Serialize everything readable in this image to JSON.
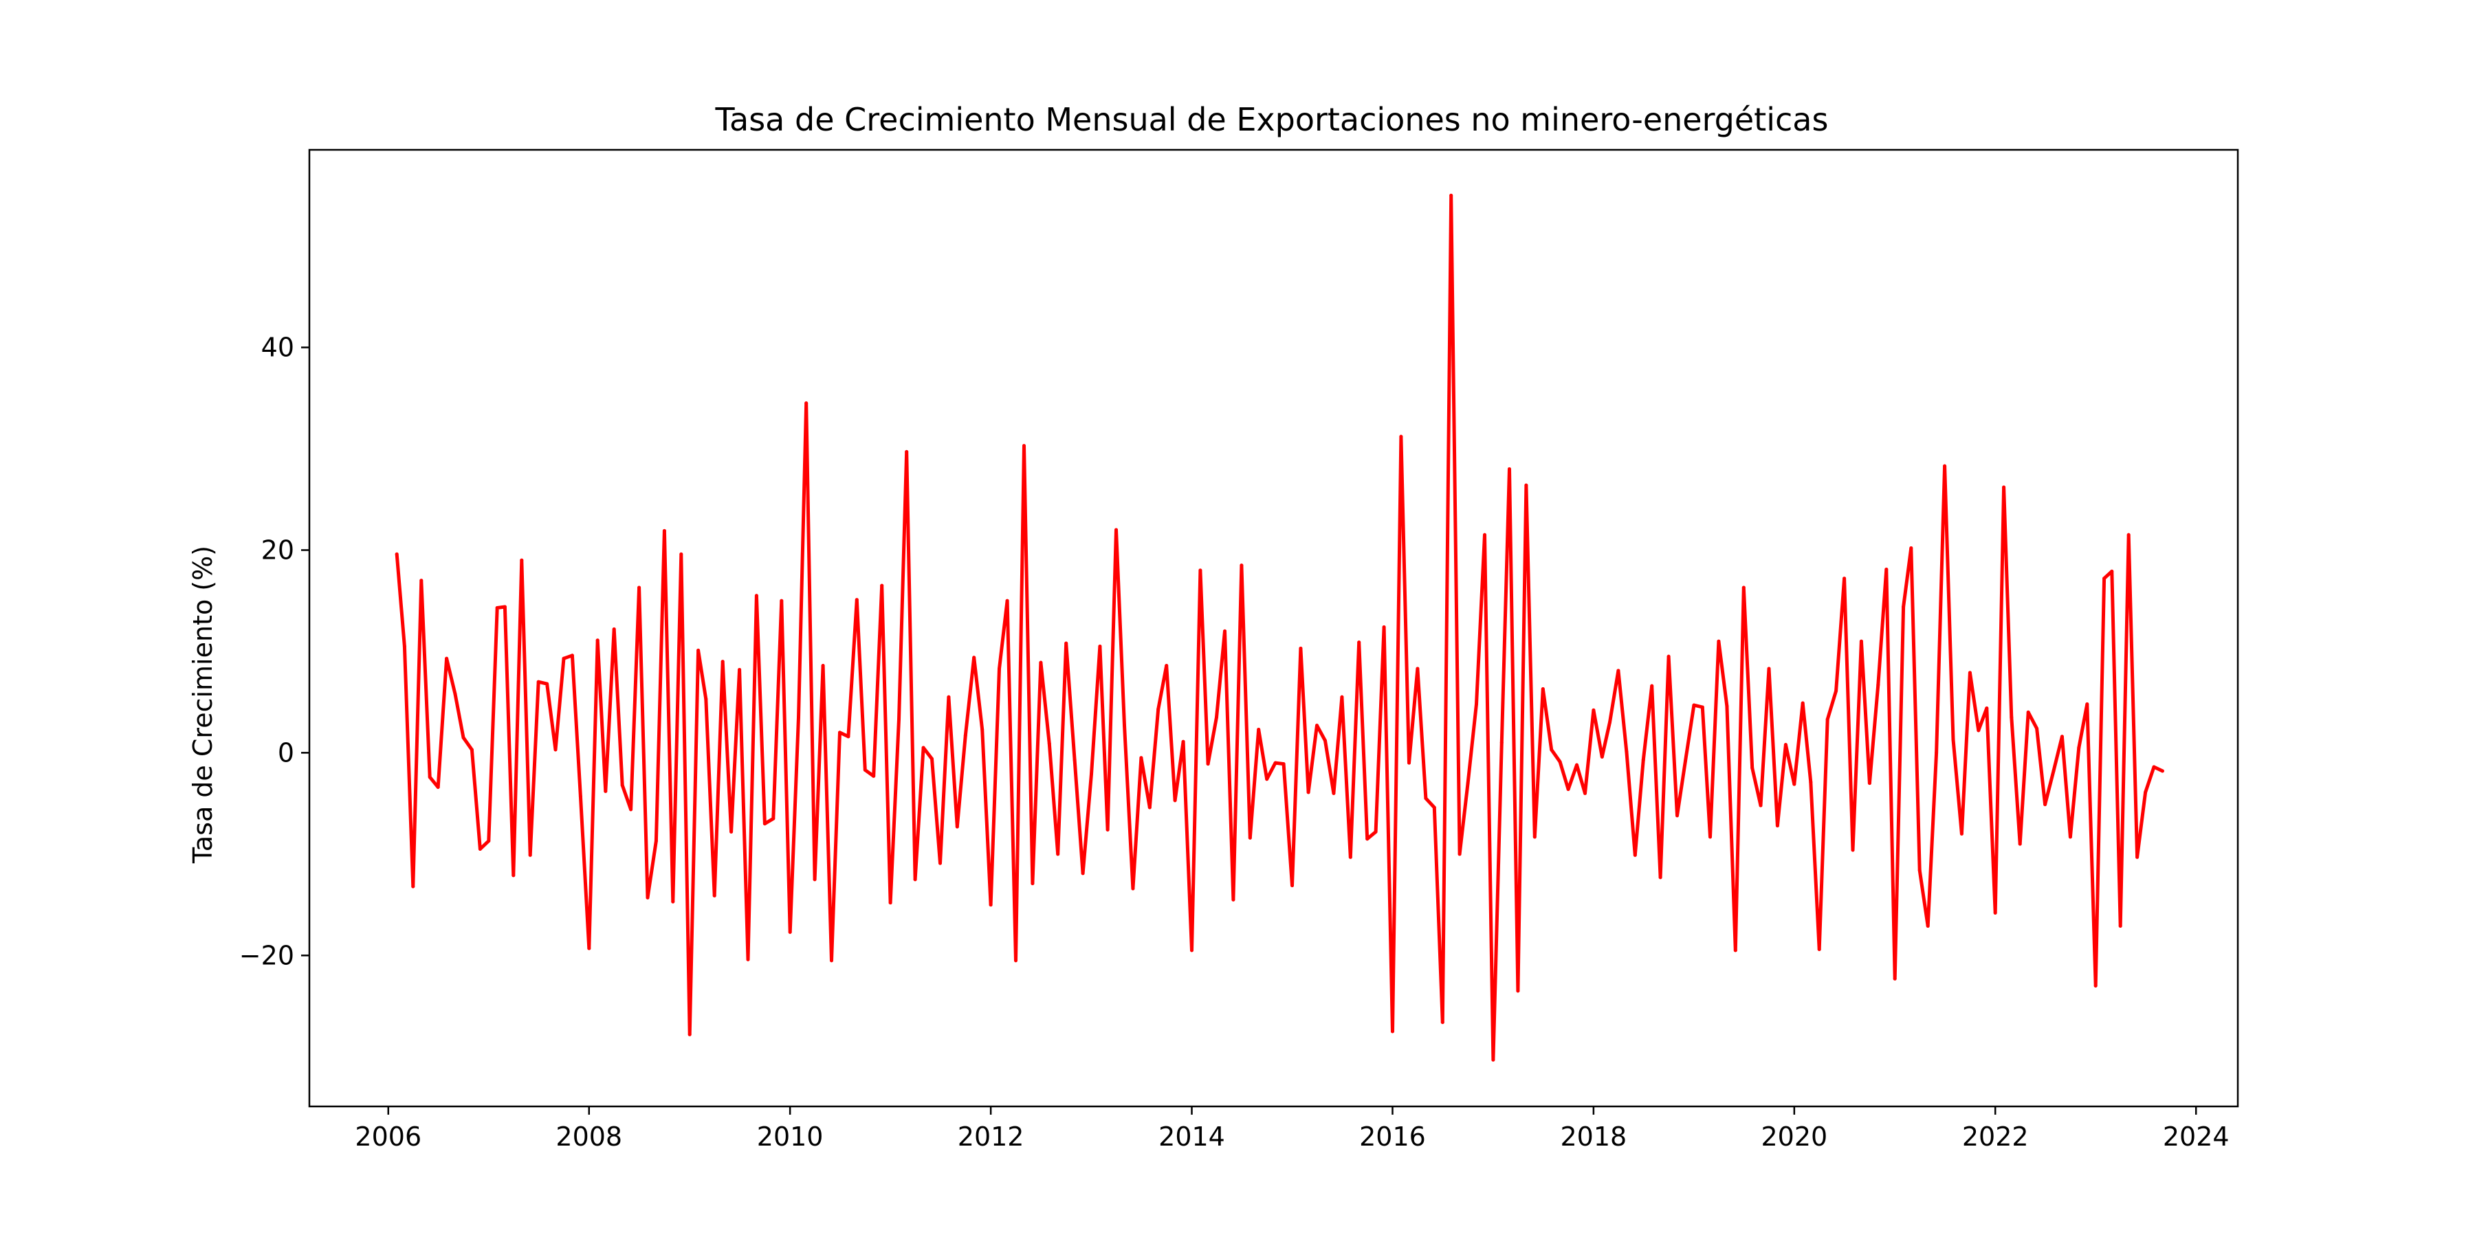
{
  "chart_data": {
    "type": "line",
    "title": "Tasa de Crecimiento Mensual de Exportaciones no minero-energéticas",
    "xlabel": "",
    "ylabel": "Tasa de Crecimiento (%)",
    "grid": false,
    "legend": "none",
    "x_axis": {
      "type": "date",
      "range": [
        "2005-03-20",
        "2024-06-01"
      ],
      "ticks": [
        "2006",
        "2008",
        "2010",
        "2012",
        "2014",
        "2016",
        "2018",
        "2020",
        "2022",
        "2024"
      ]
    },
    "y_axis": {
      "range": [
        -34.9,
        59.5
      ],
      "ticks": [
        "−20",
        "0",
        "20",
        "40"
      ],
      "tick_values": [
        -20,
        0,
        20,
        40
      ]
    },
    "series": [
      {
        "color": "#ff0000",
        "x": [
          "2006-02",
          "2006-03",
          "2006-04",
          "2006-05",
          "2006-06",
          "2006-07",
          "2006-08",
          "2006-09",
          "2006-10",
          "2006-11",
          "2006-12",
          "2007-01",
          "2007-02",
          "2007-03",
          "2007-04",
          "2007-05",
          "2007-06",
          "2007-07",
          "2007-08",
          "2007-09",
          "2007-10",
          "2007-11",
          "2007-12",
          "2008-01",
          "2008-02",
          "2008-03",
          "2008-04",
          "2008-05",
          "2008-06",
          "2008-07",
          "2008-08",
          "2008-09",
          "2008-10",
          "2008-11",
          "2008-12",
          "2009-01",
          "2009-02",
          "2009-03",
          "2009-04",
          "2009-05",
          "2009-06",
          "2009-07",
          "2009-08",
          "2009-09",
          "2009-10",
          "2009-11",
          "2009-12",
          "2010-01",
          "2010-02",
          "2010-03",
          "2010-04",
          "2010-05",
          "2010-06",
          "2010-07",
          "2010-08",
          "2010-09",
          "2010-10",
          "2010-11",
          "2010-12",
          "2011-01",
          "2011-02",
          "2011-03",
          "2011-04",
          "2011-05",
          "2011-06",
          "2011-07",
          "2011-08",
          "2011-09",
          "2011-10",
          "2011-11",
          "2011-12",
          "2012-01",
          "2012-02",
          "2012-03",
          "2012-04",
          "2012-05",
          "2012-06",
          "2012-07",
          "2012-08",
          "2012-09",
          "2012-10",
          "2012-11",
          "2012-12",
          "2013-01",
          "2013-02",
          "2013-03",
          "2013-04",
          "2013-05",
          "2013-06",
          "2013-07",
          "2013-08",
          "2013-09",
          "2013-10",
          "2013-11",
          "2013-12",
          "2014-01",
          "2014-02",
          "2014-03",
          "2014-04",
          "2014-05",
          "2014-06",
          "2014-07",
          "2014-08",
          "2014-09",
          "2014-10",
          "2014-11",
          "2014-12",
          "2015-01",
          "2015-02",
          "2015-03",
          "2015-04",
          "2015-05",
          "2015-06",
          "2015-07",
          "2015-08",
          "2015-09",
          "2015-10",
          "2015-11",
          "2015-12",
          "2016-01",
          "2016-02",
          "2016-03",
          "2016-04",
          "2016-05",
          "2016-06",
          "2016-07",
          "2016-08",
          "2016-09",
          "2016-10",
          "2016-11",
          "2016-12",
          "2017-01",
          "2017-02",
          "2017-03",
          "2017-04",
          "2017-05",
          "2017-06",
          "2017-07",
          "2017-08",
          "2017-09",
          "2017-10",
          "2017-11",
          "2017-12",
          "2018-01",
          "2018-02",
          "2018-03",
          "2018-04",
          "2018-05",
          "2018-06",
          "2018-07",
          "2018-08",
          "2018-09",
          "2018-10",
          "2018-11",
          "2018-12",
          "2019-01",
          "2019-02",
          "2019-03",
          "2019-04",
          "2019-05",
          "2019-06",
          "2019-07",
          "2019-08",
          "2019-09",
          "2019-10",
          "2019-11",
          "2019-12",
          "2020-01",
          "2020-02",
          "2020-03",
          "2020-04",
          "2020-05",
          "2020-06",
          "2020-07",
          "2020-08",
          "2020-09",
          "2020-10",
          "2020-11",
          "2020-12",
          "2021-01",
          "2021-02",
          "2021-03",
          "2021-04",
          "2021-05",
          "2021-06",
          "2021-07",
          "2021-08",
          "2021-09",
          "2021-10",
          "2021-11",
          "2021-12",
          "2022-01",
          "2022-02",
          "2022-03",
          "2022-04",
          "2022-05",
          "2022-06",
          "2022-07",
          "2022-08",
          "2022-09",
          "2022-10",
          "2022-11",
          "2022-12",
          "2023-01",
          "2023-02",
          "2023-03",
          "2023-04",
          "2023-05",
          "2023-06",
          "2023-07",
          "2023-08",
          "2023-09"
        ],
        "y": [
          19.6,
          10.5,
          -13.2,
          17.0,
          -2.4,
          -3.4,
          9.3,
          5.8,
          1.5,
          0.3,
          -9.5,
          -8.7,
          14.3,
          14.4,
          -12.1,
          19.0,
          -10.1,
          7.0,
          6.8,
          0.3,
          9.3,
          9.6,
          -4.3,
          -19.3,
          11.1,
          -3.8,
          12.2,
          -3.2,
          -5.6,
          16.3,
          -14.3,
          -8.7,
          21.9,
          -14.7,
          19.6,
          -27.8,
          10.1,
          5.3,
          -14.1,
          9.0,
          -7.8,
          8.2,
          -20.4,
          15.5,
          -7.0,
          -6.5,
          15.0,
          -17.7,
          3.5,
          34.5,
          -12.5,
          8.6,
          -20.5,
          2.0,
          1.6,
          15.1,
          -1.7,
          -2.3,
          16.5,
          -14.8,
          3.3,
          29.7,
          -12.5,
          0.5,
          -0.6,
          -10.9,
          5.5,
          -7.3,
          1.7,
          9.4,
          2.3,
          -15.0,
          8.3,
          15.0,
          -20.5,
          30.3,
          -12.9,
          8.9,
          0.9,
          -10.0,
          10.8,
          -0.7,
          -11.9,
          -2.1,
          10.5,
          -7.6,
          22.0,
          2.7,
          -13.4,
          -0.5,
          -5.4,
          4.3,
          8.6,
          -4.7,
          1.1,
          -19.5,
          18.0,
          -1.1,
          3.5,
          12.0,
          -14.5,
          18.5,
          -8.4,
          2.3,
          -2.6,
          -1.0,
          -1.1,
          -13.1,
          10.3,
          -3.9,
          2.7,
          1.2,
          -4.0,
          5.5,
          -10.3,
          10.9,
          -8.5,
          -7.8,
          12.4,
          -27.5,
          31.2,
          -1.0,
          8.3,
          -4.5,
          -5.4,
          -26.6,
          55.0,
          -10.0,
          -3.0,
          4.8,
          21.5,
          -30.3,
          1.0,
          28.0,
          -23.5,
          26.4,
          -8.3,
          6.3,
          0.3,
          -0.9,
          -3.6,
          -1.2,
          -4.0,
          4.2,
          -0.4,
          3.0,
          8.1,
          0.1,
          -10.1,
          -0.7,
          6.6,
          -12.3,
          9.5,
          -6.2,
          -0.8,
          4.7,
          4.5,
          -8.3,
          11.0,
          4.6,
          -19.5,
          16.3,
          -1.5,
          -5.2,
          8.3,
          -7.2,
          0.8,
          -3.1,
          4.9,
          -2.9,
          -19.4,
          3.3,
          6.1,
          17.2,
          -9.6,
          11.0,
          -3.0,
          6.7,
          18.1,
          -22.3,
          14.4,
          20.2,
          -11.6,
          -17.1,
          0.0,
          28.3,
          1.3,
          -8.0,
          7.9,
          2.2,
          4.4,
          -15.8,
          26.2,
          3.5,
          -9.0,
          4.0,
          2.4,
          -5.1,
          -1.8,
          1.6,
          -8.3,
          0.5,
          4.8,
          -23.0,
          17.2,
          17.9,
          -17.1,
          21.5,
          -10.3,
          -3.9,
          -1.4,
          -1.8
        ]
      }
    ]
  }
}
